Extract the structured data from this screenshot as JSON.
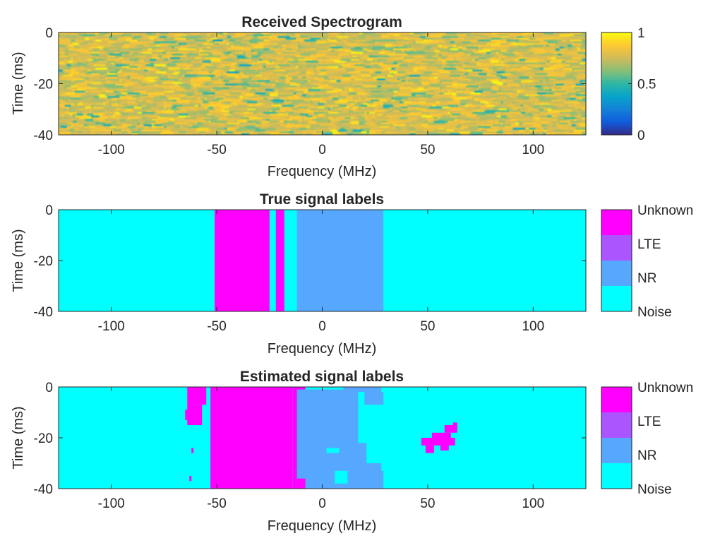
{
  "figure": {
    "colors": {
      "noise": "#00ffff",
      "nr": "#56a8ff",
      "lte": "#aa55ff",
      "unknown": "#ff00ff",
      "axis": "#262626",
      "background": "#ffffff"
    }
  },
  "chart_data": [
    {
      "type": "heatmap",
      "title": "Received Spectrogram",
      "xlabel": "Frequency (MHz)",
      "ylabel": "Time (ms)",
      "xlim": [
        -125,
        125
      ],
      "ylim": [
        -40,
        0
      ],
      "xticks": [
        -100,
        -50,
        0,
        50,
        100
      ],
      "xtick_labels": [
        "-100",
        "-50",
        "0",
        "50",
        "100"
      ],
      "yticks": [
        0,
        -20,
        -40
      ],
      "ytick_labels": [
        "0",
        "-20",
        "-40"
      ],
      "colorbar": {
        "type": "continuous",
        "colormap": "parula",
        "range": [
          0,
          1
        ],
        "ticks": [
          0,
          0.5,
          1
        ],
        "tick_labels": [
          "0",
          "0.5",
          "1"
        ]
      },
      "value_description_mean": 0.78,
      "value_description_spread": 0.12
    },
    {
      "type": "heatmap",
      "title": "True signal labels",
      "xlabel": "Frequency (MHz)",
      "ylabel": "Time (ms)",
      "xlim": [
        -125,
        125
      ],
      "ylim": [
        -40,
        0
      ],
      "xticks": [
        -100,
        -50,
        0,
        50,
        100
      ],
      "xtick_labels": [
        "-100",
        "-50",
        "0",
        "50",
        "100"
      ],
      "yticks": [
        0,
        -20,
        -40
      ],
      "ytick_labels": [
        "0",
        "-20",
        "-40"
      ],
      "colorbar": {
        "type": "categorical",
        "categories": [
          "Noise",
          "NR",
          "LTE",
          "Unknown"
        ]
      },
      "background_class": "Noise",
      "regions": [
        {
          "class": "Unknown",
          "f0": -51,
          "f1": -25,
          "t0": -40,
          "t1": 0
        },
        {
          "class": "Unknown",
          "f0": -22,
          "f1": -18,
          "t0": -40,
          "t1": 0
        },
        {
          "class": "NR",
          "f0": -12,
          "f1": 29,
          "t0": -40,
          "t1": 0
        }
      ]
    },
    {
      "type": "heatmap",
      "title": "Estimated signal labels",
      "xlabel": "Frequency (MHz)",
      "ylabel": "Time (ms)",
      "xlim": [
        -125,
        125
      ],
      "ylim": [
        -40,
        0
      ],
      "xticks": [
        -100,
        -50,
        0,
        50,
        100
      ],
      "xtick_labels": [
        "-100",
        "-50",
        "0",
        "50",
        "100"
      ],
      "yticks": [
        0,
        -20,
        -40
      ],
      "ytick_labels": [
        "0",
        "-20",
        "-40"
      ],
      "colorbar": {
        "type": "categorical",
        "categories": [
          "Noise",
          "NR",
          "LTE",
          "Unknown"
        ]
      },
      "background_class": "Noise",
      "regions": [
        {
          "class": "Unknown",
          "f0": -53,
          "f1": -14,
          "t0": -40,
          "t1": 0
        },
        {
          "class": "Unknown",
          "f0": -14,
          "f1": 18,
          "t0": -40,
          "t1": -36
        },
        {
          "class": "Unknown",
          "f0": -14,
          "f1": 5,
          "t0": -36,
          "t1": -33
        },
        {
          "class": "Unknown",
          "f0": -14,
          "f1": -8,
          "t0": -33,
          "t1": 0
        },
        {
          "class": "Unknown",
          "f0": -64,
          "f1": -55,
          "t0": -7,
          "t1": 0
        },
        {
          "class": "Unknown",
          "f0": -64,
          "f1": -57,
          "t0": -15,
          "t1": -7
        },
        {
          "class": "Unknown",
          "f0": -65,
          "f1": -62,
          "t0": -13,
          "t1": -9
        },
        {
          "class": "Unknown",
          "f0": -63,
          "f1": -62,
          "t0": -37,
          "t1": -35
        },
        {
          "class": "Unknown",
          "f0": -62,
          "f1": -61,
          "t0": -26,
          "t1": -24
        },
        {
          "class": "NR",
          "f0": -12,
          "f1": 17,
          "t0": -36,
          "t1": -1
        },
        {
          "class": "NR",
          "f0": -8,
          "f1": 28,
          "t0": -40,
          "t1": -30
        },
        {
          "class": "NR",
          "f0": 17,
          "f1": 29,
          "t0": -40,
          "t1": -33
        },
        {
          "class": "NR",
          "f0": 10,
          "f1": 28,
          "t0": -3,
          "t1": 0
        },
        {
          "class": "NR",
          "f0": 20,
          "f1": 29,
          "t0": -7,
          "t1": -2
        },
        {
          "class": "NR",
          "f0": 15,
          "f1": 21,
          "t0": -30,
          "t1": -22
        },
        {
          "class": "Noise",
          "f0": 6,
          "f1": 12,
          "t0": -38,
          "t1": -33
        },
        {
          "class": "Noise",
          "f0": 2,
          "f1": 8,
          "t0": -26,
          "t1": -24
        },
        {
          "class": "Noise",
          "f0": 17,
          "f1": 20,
          "t0": -5,
          "t1": -2
        },
        {
          "class": "Unknown",
          "f0": 47,
          "f1": 63,
          "t0": -23,
          "t1": -20
        },
        {
          "class": "Unknown",
          "f0": 52,
          "f1": 61,
          "t0": -20,
          "t1": -18
        },
        {
          "class": "Unknown",
          "f0": 58,
          "f1": 64,
          "t0": -18,
          "t1": -15
        },
        {
          "class": "Unknown",
          "f0": 49,
          "f1": 53,
          "t0": -26,
          "t1": -23
        },
        {
          "class": "Unknown",
          "f0": 56,
          "f1": 60,
          "t0": -25,
          "t1": -22
        },
        {
          "class": "Unknown",
          "f0": 62,
          "f1": 64,
          "t0": -16,
          "t1": -14
        }
      ]
    }
  ]
}
